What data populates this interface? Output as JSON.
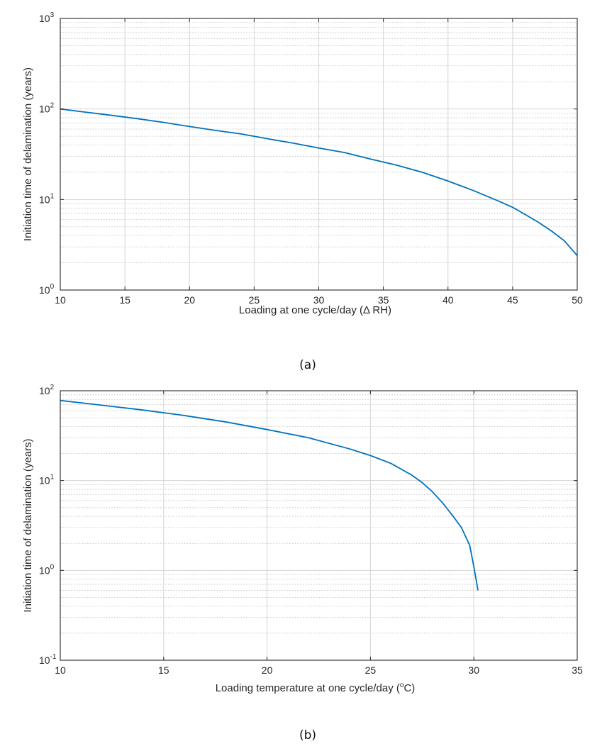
{
  "chart_data": [
    {
      "type": "line",
      "xlabel": "Loading at one cycle/day (Δ RH)",
      "ylabel": "Initiation time of delamination  (years)",
      "xlim": [
        10,
        50
      ],
      "ylim": [
        1,
        1000
      ],
      "yscale": "log",
      "grid": true,
      "xticks": [
        "10",
        "15",
        "20",
        "25",
        "30",
        "35",
        "40",
        "45",
        "50"
      ],
      "yticks": [
        {
          "base": "10",
          "exp": "0"
        },
        {
          "base": "10",
          "exp": "1"
        },
        {
          "base": "10",
          "exp": "2"
        },
        {
          "base": "10",
          "exp": "3"
        }
      ],
      "color": "#0072BD",
      "series": [
        {
          "x": [
            10,
            12,
            14,
            16,
            18,
            20,
            22,
            24,
            26,
            28,
            30,
            32,
            34,
            36,
            38,
            40,
            42,
            44,
            45,
            46,
            47,
            48,
            49,
            50
          ],
          "y": [
            100,
            92,
            85,
            78,
            71,
            64,
            58,
            53,
            47,
            42,
            37,
            33,
            28,
            24,
            20,
            16,
            12.5,
            9.5,
            8.2,
            6.8,
            5.6,
            4.5,
            3.5,
            2.4
          ]
        }
      ],
      "caption": "(a)"
    },
    {
      "type": "line",
      "xlabel": "Loading temperature at one cycle/day (",
      "xlabel_sup": "o",
      "xlabel_after": "C)",
      "ylabel": "Initiation time of delamination  (years)",
      "xlim": [
        10,
        35
      ],
      "ylim": [
        0.1,
        100
      ],
      "yscale": "log",
      "grid": true,
      "xticks": [
        "10",
        "15",
        "20",
        "25",
        "30",
        "35"
      ],
      "yticks": [
        {
          "base": "10",
          "exp": "-1"
        },
        {
          "base": "10",
          "exp": "0"
        },
        {
          "base": "10",
          "exp": "1"
        },
        {
          "base": "10",
          "exp": "2"
        }
      ],
      "color": "#0072BD",
      "series": [
        {
          "x": [
            10,
            12,
            14,
            16,
            18,
            20,
            22,
            24,
            25,
            26,
            27,
            27.5,
            28,
            28.5,
            29,
            29.4,
            29.8,
            30,
            30.2
          ],
          "y": [
            78,
            69,
            61,
            53,
            45,
            37,
            30,
            22.5,
            19,
            15.5,
            11.5,
            9.5,
            7.5,
            5.6,
            4,
            3,
            1.9,
            1.1,
            0.6
          ]
        }
      ],
      "caption": "(b)"
    }
  ]
}
